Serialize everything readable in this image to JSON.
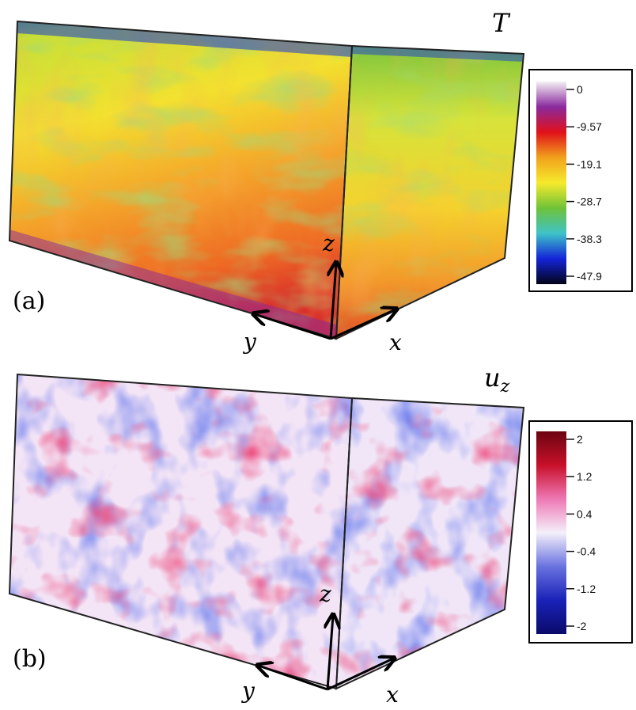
{
  "panels": [
    {
      "label": "(a)",
      "field": "T",
      "axes": {
        "x": "x",
        "y": "y",
        "z": "z"
      },
      "colorbar": {
        "ticks": [
          "0",
          "-9.57",
          "-19.1",
          "-28.7",
          "-38.3",
          "-47.9"
        ],
        "colors": [
          "#f4f0f4",
          "#8a2a9e",
          "#e0101a",
          "#f2a11c",
          "#f6ea2c",
          "#6fc238",
          "#3ec3c8",
          "#1424d8",
          "#030318"
        ]
      }
    },
    {
      "label": "(b)",
      "field": "u",
      "field_sub": "z",
      "axes": {
        "x": "x",
        "y": "y",
        "z": "z"
      },
      "colorbar": {
        "ticks": [
          "2",
          "1.2",
          "0.4",
          "-0.4",
          "-1.2",
          "-2"
        ],
        "colors": [
          "#6b0410",
          "#c8102a",
          "#ee78b4",
          "#f4f0fa",
          "#6a72e0",
          "#1a22b8",
          "#0a0a6a"
        ]
      }
    }
  ]
}
